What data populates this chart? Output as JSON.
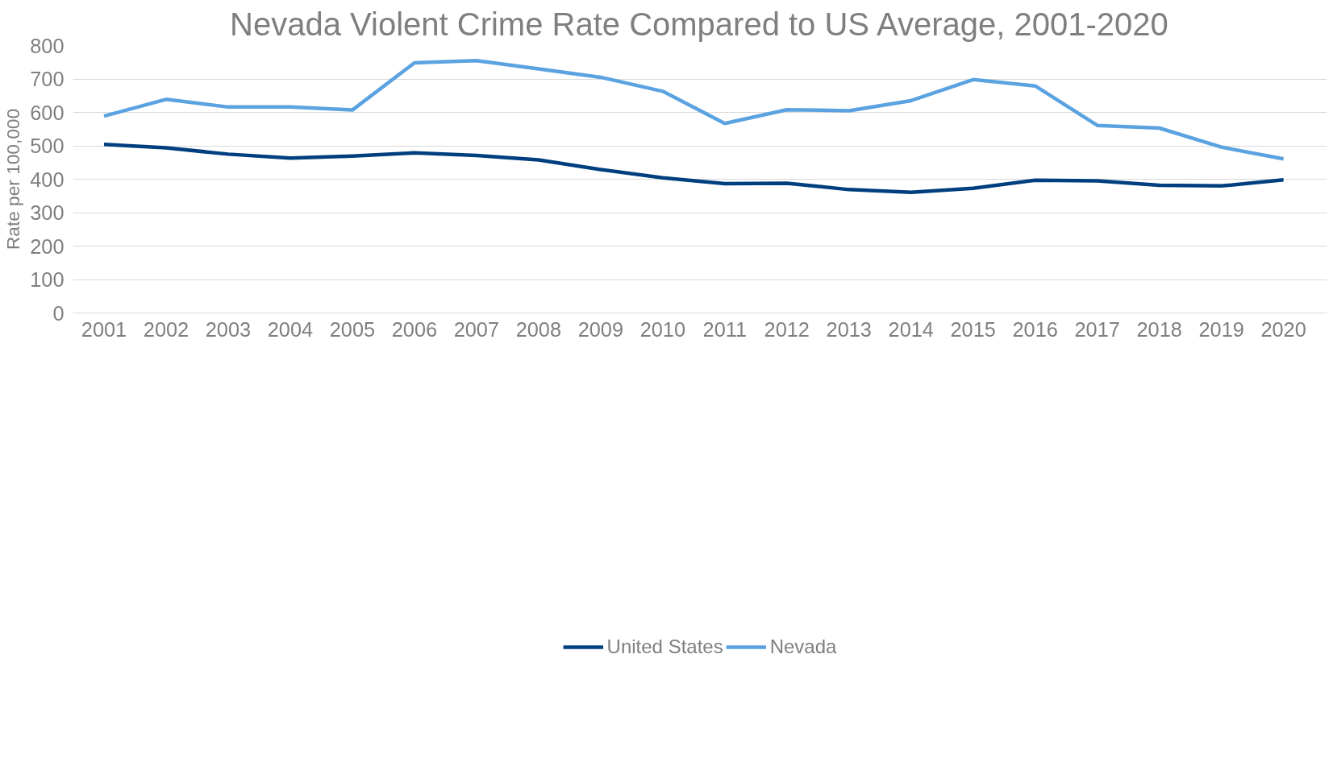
{
  "chart_data": {
    "type": "line",
    "title": "Nevada Violent Crime Rate Compared to US Average, 2001-2020",
    "ylabel": "Rate per 100,000",
    "categories": [
      "2001",
      "2002",
      "2003",
      "2004",
      "2005",
      "2006",
      "2007",
      "2008",
      "2009",
      "2010",
      "2011",
      "2012",
      "2013",
      "2014",
      "2015",
      "2016",
      "2017",
      "2018",
      "2019",
      "2020"
    ],
    "series": [
      {
        "name": "United States",
        "color": "#003f7f",
        "values": [
          504,
          494,
          475,
          463,
          469,
          479,
          471,
          458,
          429,
          404,
          387,
          388,
          369,
          361,
          373,
          397,
          395,
          382,
          380,
          398
        ]
      },
      {
        "name": "Nevada",
        "color": "#5ba3e0",
        "values": [
          589,
          639,
          616,
          616,
          607,
          748,
          755,
          730,
          705,
          663,
          567,
          608,
          605,
          635,
          698,
          679,
          561,
          553,
          496,
          461
        ]
      }
    ],
    "ylim": [
      0,
      800
    ],
    "yticks": [
      0,
      100,
      200,
      300,
      400,
      500,
      600,
      700,
      800
    ],
    "grid": "y",
    "legend": "bottom",
    "marker": "none",
    "line_style": "solid"
  }
}
